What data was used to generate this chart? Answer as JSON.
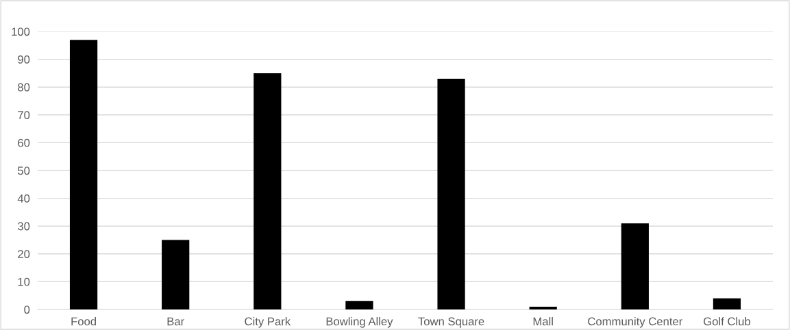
{
  "chart_data": {
    "type": "bar",
    "categories": [
      "Food",
      "Bar",
      "City Park",
      "Bowling Alley",
      "Town Square",
      "Mall",
      "Community Center",
      "Golf Club"
    ],
    "values": [
      97,
      25,
      85,
      3,
      83,
      1,
      31,
      4
    ],
    "color": "#000000",
    "ylim": [
      0,
      100
    ],
    "yticks": [
      0,
      10,
      20,
      30,
      40,
      50,
      60,
      70,
      80,
      90,
      100
    ],
    "grid": "y",
    "legend": false
  }
}
